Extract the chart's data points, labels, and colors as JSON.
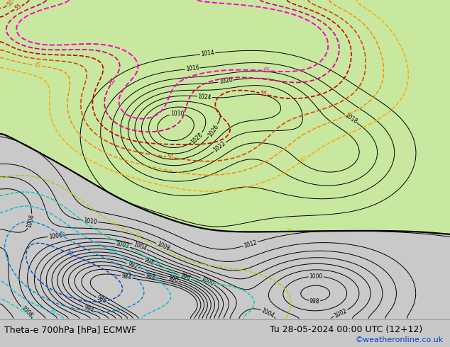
{
  "title_left": "Theta-e 700hPa [hPa] ECMWF",
  "title_right": "Tu 28-05-2024 00:00 UTC (12+12)",
  "credit": "©weatheronline.co.uk",
  "fig_width": 6.34,
  "fig_height": 4.9,
  "dpi": 100,
  "bg_color": "#c8c8c8",
  "land_color": "#d8d8d8",
  "bottom_bar_color": "#e8e8e8",
  "title_fontsize": 9.0,
  "credit_color": "#0044cc",
  "credit_fontsize": 8,
  "theta_colors": {
    "65": "#ff00cc",
    "60": "#dd0088",
    "55": "#cc0000",
    "50": "#dd4400",
    "45": "#ff8800",
    "40": "#ffaa00",
    "35": "#ddcc00",
    "30": "#aacc00",
    "25": "#00ccaa",
    "20": "#00bbdd",
    "15": "#0088cc",
    "10": "#0044bb"
  }
}
